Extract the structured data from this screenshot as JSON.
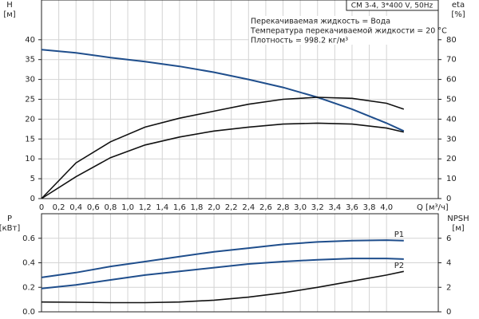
{
  "chart_data": [
    {
      "type": "line",
      "title": "CM 3-4, 3*400 V, 50Hz",
      "annotations": [
        "Перекачиваемая жидкость = Вода",
        "Температура перекачиваемой жидкости = 20 °C",
        "Плотность = 998.2 кг/м³"
      ],
      "ylabel": [
        "H",
        "[м]"
      ],
      "y2label": [
        "eta",
        "[%]"
      ],
      "xlabel": "Q [м³/ч]",
      "x": [
        0,
        0.4,
        0.8,
        1.2,
        1.6,
        2.0,
        2.4,
        2.8,
        3.2,
        3.6,
        4.0,
        4.2
      ],
      "series": [
        {
          "color": "#1f4e8c",
          "values": [
            37.5,
            36.7,
            35.5,
            34.5,
            33.3,
            31.8,
            30,
            28,
            25.5,
            22.5,
            19,
            17
          ]
        },
        {
          "color": "#111111",
          "axis": "y2",
          "values": [
            0,
            18,
            28.6,
            36,
            40.5,
            44,
            47.5,
            50,
            51,
            50.5,
            48,
            45
          ]
        },
        {
          "color": "#111111",
          "axis": "y2",
          "values": [
            0,
            11,
            20.6,
            27,
            31,
            34,
            36,
            37.5,
            38,
            37.5,
            35.5,
            33.5
          ]
        }
      ],
      "xlim": [
        0,
        4.6
      ],
      "xticks": [
        0,
        {
          "value": 0.2,
          "label": "0,2"
        },
        {
          "value": 0.4,
          "label": "0,4"
        },
        {
          "value": 0.6,
          "label": "0,6"
        },
        {
          "value": 0.8,
          "label": "0,8"
        },
        {
          "value": 1.0,
          "label": "1,0"
        },
        {
          "value": 1.2,
          "label": "1,2"
        },
        {
          "value": 1.4,
          "label": "1,4"
        },
        {
          "value": 1.6,
          "label": "1,6"
        },
        {
          "value": 1.8,
          "label": "1,8"
        },
        {
          "value": 2.0,
          "label": "2,0"
        },
        {
          "value": 2.2,
          "label": "2,2"
        },
        {
          "value": 2.4,
          "label": "2,4"
        },
        {
          "value": 2.6,
          "label": "2,6"
        },
        {
          "value": 2.8,
          "label": "2,8"
        },
        {
          "value": 3.0,
          "label": "3,0"
        },
        {
          "value": 3.2,
          "label": "3,2"
        },
        {
          "value": 3.4,
          "label": "3,4"
        },
        {
          "value": 3.6,
          "label": "3,6"
        },
        {
          "value": 3.8,
          "label": "3,8"
        },
        {
          "value": 4.0,
          "label": "4,0"
        }
      ],
      "ylim": [
        0,
        50
      ],
      "yticks": [
        0,
        5,
        10,
        15,
        20,
        25,
        30,
        35,
        40
      ],
      "y2lim": [
        0,
        100
      ],
      "y2ticks": [
        0,
        10,
        20,
        30,
        40,
        50,
        60,
        70,
        80
      ],
      "grid": true
    },
    {
      "type": "line",
      "ylabel": [
        "P",
        "[кВт]"
      ],
      "y2label": [
        "NPSH",
        "[м]"
      ],
      "x": [
        0,
        0.4,
        0.8,
        1.2,
        1.6,
        2.0,
        2.4,
        2.8,
        3.2,
        3.6,
        4.0,
        4.2
      ],
      "series": [
        {
          "name": "P1",
          "color": "#1f4e8c",
          "values": [
            0.28,
            0.32,
            0.37,
            0.41,
            0.45,
            0.49,
            0.52,
            0.55,
            0.57,
            0.58,
            0.585,
            0.58
          ]
        },
        {
          "name": "P2",
          "color": "#1f4e8c",
          "values": [
            0.19,
            0.22,
            0.26,
            0.3,
            0.33,
            0.36,
            0.39,
            0.41,
            0.425,
            0.435,
            0.435,
            0.43
          ]
        },
        {
          "color": "#111111",
          "axis": "y2",
          "values": [
            0.8,
            0.78,
            0.75,
            0.75,
            0.8,
            0.95,
            1.2,
            1.55,
            2.0,
            2.5,
            3.0,
            3.3
          ]
        }
      ],
      "xlim": [
        0,
        4.6
      ],
      "xticks": [
        0,
        0.2,
        0.4,
        0.6,
        0.8,
        1.0,
        1.2,
        1.4,
        1.6,
        1.8,
        2.0,
        2.2,
        2.4,
        2.6,
        2.8,
        3.0,
        3.2,
        3.4,
        3.6,
        3.8,
        4.0
      ],
      "ylim": [
        0,
        0.8
      ],
      "yticks": [
        {
          "value": 0,
          "label": "0.0"
        },
        0.2,
        0.4,
        0.6
      ],
      "y2lim": [
        0,
        8
      ],
      "y2ticks": [
        0,
        2,
        4,
        6
      ],
      "grid": true
    }
  ]
}
